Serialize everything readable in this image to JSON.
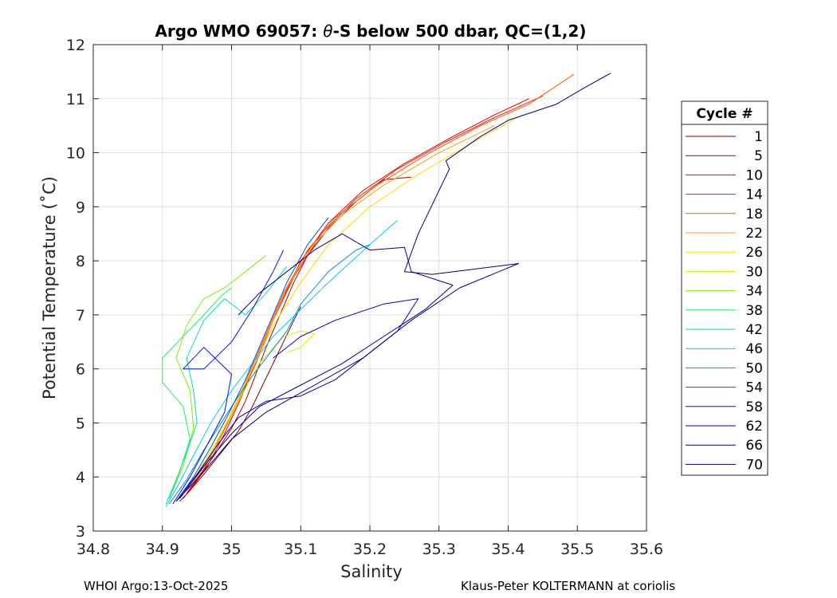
{
  "chart_data": {
    "type": "line",
    "title": "Argo WMO 69057: θ-S below 500 dbar,  QC=(1,2)",
    "title_parts": {
      "before": "Argo WMO 69057: ",
      "symbol": "θ",
      "after": "-S below 500 dbar,  QC=(1,2)"
    },
    "xlabel": "Salinity",
    "ylabel": "Potential Temperature (˚C)",
    "xlim": [
      34.8,
      35.6
    ],
    "ylim": [
      3,
      12
    ],
    "xticks": [
      34.8,
      34.9,
      35.0,
      35.1,
      35.2,
      35.3,
      35.4,
      35.5,
      35.6
    ],
    "xtick_labels": [
      "34.8",
      "34.9",
      "35",
      "35.1",
      "35.2",
      "35.3",
      "35.4",
      "35.5",
      "35.6"
    ],
    "yticks": [
      3,
      4,
      5,
      6,
      7,
      8,
      9,
      10,
      11,
      12
    ],
    "ytick_labels": [
      "3",
      "4",
      "5",
      "6",
      "7",
      "8",
      "9",
      "10",
      "11",
      "12"
    ],
    "grid": true,
    "legend_title": "Cycle #",
    "legend_position": "outside-right",
    "series": [
      {
        "name": "1",
        "color": "#800000",
        "points": [
          [
            34.925,
            3.55
          ],
          [
            34.94,
            3.75
          ],
          [
            34.96,
            4.05
          ],
          [
            34.985,
            4.45
          ],
          [
            35.01,
            4.85
          ],
          [
            35.03,
            5.3
          ],
          [
            35.045,
            5.7
          ],
          [
            35.06,
            6.1
          ],
          [
            35.075,
            6.5
          ],
          [
            35.09,
            6.9
          ],
          [
            35.1,
            7.15
          ]
        ]
      },
      {
        "name": "5",
        "color": "#b00000",
        "points": [
          [
            34.93,
            3.6
          ],
          [
            34.95,
            3.95
          ],
          [
            34.975,
            4.4
          ],
          [
            35.0,
            4.9
          ],
          [
            35.02,
            5.4
          ],
          [
            35.035,
            5.9
          ],
          [
            35.05,
            6.4
          ],
          [
            35.07,
            7.0
          ],
          [
            35.09,
            7.6
          ],
          [
            35.11,
            8.1
          ],
          [
            35.14,
            8.6
          ],
          [
            35.18,
            9.1
          ],
          [
            35.22,
            9.5
          ],
          [
            35.26,
            9.55
          ]
        ]
      },
      {
        "name": "10",
        "color": "#e30000",
        "points": [
          [
            34.94,
            3.75
          ],
          [
            34.965,
            4.2
          ],
          [
            34.99,
            4.8
          ],
          [
            35.015,
            5.5
          ],
          [
            35.04,
            6.3
          ],
          [
            35.07,
            7.2
          ],
          [
            35.1,
            8.0
          ],
          [
            35.14,
            8.7
          ],
          [
            35.19,
            9.3
          ],
          [
            35.25,
            9.8
          ],
          [
            35.32,
            10.3
          ],
          [
            35.38,
            10.7
          ],
          [
            35.43,
            11.0
          ]
        ]
      },
      {
        "name": "14",
        "color": "#ff1a00",
        "points": [
          [
            34.935,
            3.7
          ],
          [
            34.96,
            4.15
          ],
          [
            34.985,
            4.75
          ],
          [
            35.01,
            5.4
          ],
          [
            35.035,
            6.1
          ],
          [
            35.06,
            6.9
          ],
          [
            35.09,
            7.7
          ],
          [
            35.13,
            8.5
          ],
          [
            35.18,
            9.15
          ],
          [
            35.24,
            9.7
          ],
          [
            35.31,
            10.2
          ],
          [
            35.38,
            10.65
          ],
          [
            35.45,
            11.05
          ]
        ]
      },
      {
        "name": "18",
        "color": "#ff5500",
        "points": [
          [
            34.94,
            3.8
          ],
          [
            34.965,
            4.3
          ],
          [
            34.99,
            4.9
          ],
          [
            35.015,
            5.6
          ],
          [
            35.045,
            6.5
          ],
          [
            35.075,
            7.4
          ],
          [
            35.11,
            8.2
          ],
          [
            35.15,
            8.8
          ],
          [
            35.21,
            9.4
          ],
          [
            35.28,
            9.95
          ],
          [
            35.36,
            10.5
          ],
          [
            35.43,
            10.9
          ],
          [
            35.495,
            11.45
          ]
        ]
      },
      {
        "name": "22",
        "color": "#ffa000",
        "points": [
          [
            34.945,
            3.9
          ],
          [
            34.97,
            4.4
          ],
          [
            34.995,
            5.0
          ],
          [
            35.02,
            5.7
          ],
          [
            35.05,
            6.6
          ],
          [
            35.08,
            7.5
          ],
          [
            35.115,
            8.25
          ],
          [
            35.16,
            8.85
          ],
          [
            35.22,
            9.4
          ],
          [
            35.3,
            10.0
          ],
          [
            35.38,
            10.5
          ]
        ]
      },
      {
        "name": "26",
        "color": "#ffd700",
        "points": [
          [
            34.95,
            4.0
          ],
          [
            34.975,
            4.55
          ],
          [
            35.0,
            5.2
          ],
          [
            35.03,
            6.0
          ],
          [
            35.06,
            6.8
          ],
          [
            35.1,
            7.6
          ],
          [
            35.14,
            8.3
          ],
          [
            35.2,
            9.0
          ],
          [
            35.27,
            9.6
          ],
          [
            35.35,
            10.2
          ],
          [
            35.42,
            10.7
          ]
        ]
      },
      {
        "name": "30",
        "color": "#d4f000",
        "points": [
          [
            34.95,
            4.05
          ],
          [
            34.98,
            4.7
          ],
          [
            35.01,
            5.4
          ],
          [
            35.04,
            6.1
          ],
          [
            35.075,
            6.6
          ],
          [
            35.1,
            6.7
          ],
          [
            35.12,
            6.65
          ],
          [
            35.1,
            6.4
          ],
          [
            35.08,
            6.3
          ]
        ]
      },
      {
        "name": "34",
        "color": "#7cf000",
        "points": [
          [
            34.91,
            3.6
          ],
          [
            34.93,
            4.2
          ],
          [
            34.945,
            4.9
          ],
          [
            34.94,
            5.6
          ],
          [
            34.92,
            6.2
          ],
          [
            34.935,
            6.8
          ],
          [
            34.96,
            7.3
          ],
          [
            34.99,
            7.5
          ],
          [
            35.02,
            7.8
          ],
          [
            35.05,
            8.1
          ]
        ]
      },
      {
        "name": "38",
        "color": "#20f060",
        "points": [
          [
            34.91,
            3.6
          ],
          [
            34.925,
            4.1
          ],
          [
            34.94,
            4.7
          ],
          [
            34.93,
            5.3
          ],
          [
            34.9,
            5.75
          ],
          [
            34.9,
            6.2
          ],
          [
            34.93,
            6.6
          ],
          [
            34.96,
            7.0
          ],
          [
            34.985,
            7.35
          ],
          [
            35.0,
            7.5
          ]
        ]
      },
      {
        "name": "42",
        "color": "#00e0b0",
        "points": [
          [
            34.905,
            3.5
          ],
          [
            34.92,
            3.95
          ],
          [
            34.935,
            4.45
          ],
          [
            34.95,
            5.0
          ],
          [
            34.945,
            5.6
          ],
          [
            34.935,
            6.2
          ],
          [
            34.96,
            6.9
          ],
          [
            34.99,
            7.3
          ],
          [
            35.02,
            7.0
          ],
          [
            35.05,
            7.4
          ],
          [
            35.08,
            7.9
          ]
        ]
      },
      {
        "name": "46",
        "color": "#00c8ff",
        "points": [
          [
            34.905,
            3.45
          ],
          [
            34.925,
            3.9
          ],
          [
            34.945,
            4.4
          ],
          [
            34.97,
            5.0
          ],
          [
            35.0,
            5.6
          ],
          [
            35.03,
            6.1
          ],
          [
            35.06,
            6.6
          ],
          [
            35.1,
            7.1
          ],
          [
            35.14,
            7.6
          ],
          [
            35.2,
            8.3
          ],
          [
            35.24,
            8.75
          ]
        ]
      },
      {
        "name": "50",
        "color": "#0090e0",
        "points": [
          [
            34.91,
            3.5
          ],
          [
            34.935,
            3.95
          ],
          [
            34.96,
            4.5
          ],
          [
            34.99,
            5.1
          ],
          [
            35.02,
            5.7
          ],
          [
            35.05,
            6.2
          ],
          [
            35.08,
            6.7
          ],
          [
            35.1,
            7.2
          ],
          [
            35.14,
            7.8
          ],
          [
            35.18,
            8.2
          ],
          [
            35.2,
            8.3
          ]
        ]
      },
      {
        "name": "54",
        "color": "#0050e0",
        "points": [
          [
            34.92,
            3.55
          ],
          [
            34.945,
            4.0
          ],
          [
            34.97,
            4.55
          ],
          [
            34.995,
            5.15
          ],
          [
            35.02,
            5.8
          ],
          [
            35.04,
            6.4
          ],
          [
            35.06,
            7.0
          ],
          [
            35.08,
            7.6
          ],
          [
            35.11,
            8.3
          ],
          [
            35.14,
            8.8
          ]
        ]
      },
      {
        "name": "58",
        "color": "#0010ff",
        "points": [
          [
            34.915,
            3.5
          ],
          [
            34.94,
            4.0
          ],
          [
            34.965,
            4.6
          ],
          [
            34.99,
            5.2
          ],
          [
            35.0,
            5.9
          ],
          [
            34.96,
            6.4
          ],
          [
            34.93,
            6.0
          ],
          [
            34.96,
            6.0
          ],
          [
            35.0,
            6.5
          ],
          [
            35.03,
            7.1
          ],
          [
            35.06,
            7.8
          ],
          [
            35.075,
            8.2
          ]
        ]
      },
      {
        "name": "62",
        "color": "#0000c8",
        "points": [
          [
            34.92,
            3.55
          ],
          [
            34.95,
            4.05
          ],
          [
            34.98,
            4.6
          ],
          [
            35.01,
            5.1
          ],
          [
            35.05,
            5.4
          ],
          [
            35.1,
            5.5
          ],
          [
            35.15,
            5.8
          ],
          [
            35.2,
            6.3
          ],
          [
            35.24,
            6.7
          ],
          [
            35.27,
            7.3
          ],
          [
            35.22,
            7.2
          ],
          [
            35.15,
            6.9
          ],
          [
            35.1,
            6.6
          ],
          [
            35.06,
            6.2
          ]
        ]
      },
      {
        "name": "66",
        "color": "#000090",
        "points": [
          [
            34.925,
            3.6
          ],
          [
            34.96,
            4.2
          ],
          [
            35.0,
            4.8
          ],
          [
            35.04,
            5.3
          ],
          [
            35.1,
            5.7
          ],
          [
            35.16,
            6.1
          ],
          [
            35.22,
            6.6
          ],
          [
            35.28,
            7.1
          ],
          [
            35.32,
            7.55
          ],
          [
            35.26,
            7.8
          ],
          [
            35.25,
            8.25
          ],
          [
            35.2,
            8.2
          ],
          [
            35.16,
            8.5
          ],
          [
            35.12,
            8.2
          ],
          [
            35.08,
            7.8
          ],
          [
            35.04,
            7.4
          ],
          [
            35.01,
            7.0
          ]
        ]
      },
      {
        "name": "70",
        "color": "#000080",
        "points": [
          [
            34.92,
            3.55
          ],
          [
            34.96,
            4.1
          ],
          [
            35.0,
            4.7
          ],
          [
            35.05,
            5.2
          ],
          [
            35.12,
            5.7
          ],
          [
            35.19,
            6.2
          ],
          [
            35.26,
            6.9
          ],
          [
            35.33,
            7.5
          ],
          [
            35.415,
            7.95
          ],
          [
            35.29,
            7.75
          ],
          [
            35.25,
            7.8
          ],
          [
            35.27,
            8.5
          ],
          [
            35.3,
            9.3
          ],
          [
            35.315,
            9.7
          ],
          [
            35.31,
            9.85
          ],
          [
            35.36,
            10.3
          ],
          [
            35.4,
            10.6
          ],
          [
            35.47,
            10.9
          ],
          [
            35.51,
            11.2
          ],
          [
            35.548,
            11.47
          ]
        ]
      }
    ]
  },
  "footer": {
    "left": "WHOI Argo:13-Oct-2025",
    "right": "Klaus-Peter KOLTERMANN at coriolis"
  }
}
